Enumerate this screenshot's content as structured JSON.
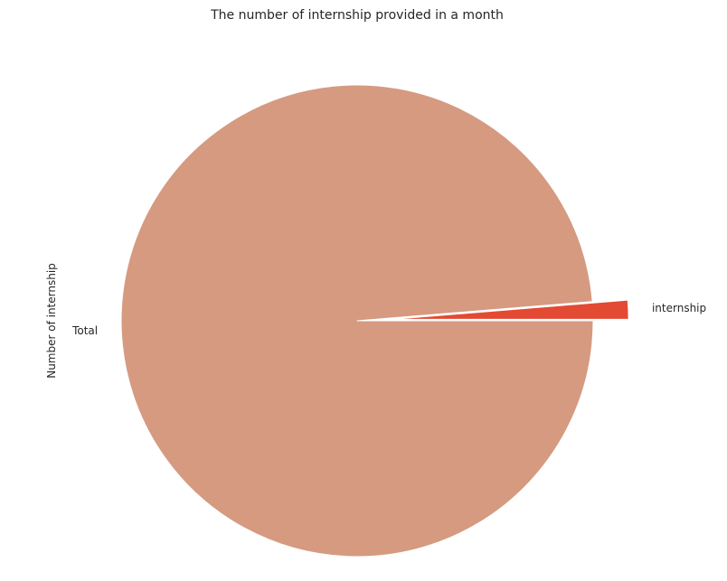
{
  "chart_data": {
    "type": "pie",
    "title": "The number of internship provided in a month",
    "ylabel": "Number of internship",
    "xlabel": "",
    "slices": [
      {
        "label": "Total",
        "value": 98.7,
        "color": "#d59a80",
        "explode": 0
      },
      {
        "label": "internship",
        "value": 1.3,
        "color": "#e24a33",
        "explode": 0.15
      }
    ],
    "start_angle_deg": 0,
    "direction": "clockwise",
    "legend": "none"
  }
}
